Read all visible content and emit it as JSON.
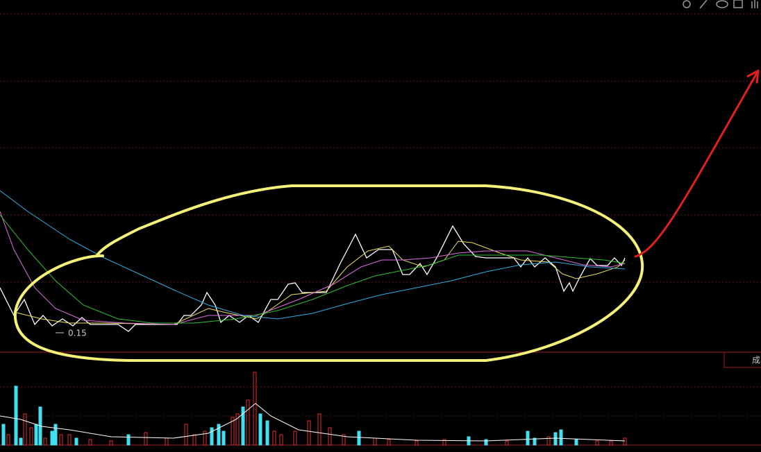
{
  "chart_data": {
    "type": "line",
    "annotation": "0.15",
    "side_label": "成",
    "xlim": [
      0,
      1096
    ],
    "ylim": [
      0.143,
      0.244
    ],
    "series": [
      {
        "color": "#ffffff",
        "x": [
          0,
          20,
          35,
          50,
          62,
          75,
          90,
          105,
          118,
          130,
          170,
          185,
          195,
          255,
          265,
          275,
          290,
          298,
          310,
          318,
          330,
          345,
          358,
          372,
          390,
          400,
          415,
          425,
          435,
          470,
          490,
          512,
          528,
          545,
          565,
          580,
          590,
          605,
          615,
          630,
          652,
          668,
          685,
          700,
          740,
          750,
          760,
          770,
          785,
          800,
          812,
          820,
          825,
          835,
          850,
          860,
          875,
          885,
          895,
          900
        ],
        "values": [
          0.161,
          0.153,
          0.1576,
          0.1504,
          0.153,
          0.15,
          0.152,
          0.15,
          0.1524,
          0.1504,
          0.1504,
          0.1484,
          0.1504,
          0.1504,
          0.153,
          0.153,
          0.156,
          0.1596,
          0.156,
          0.151,
          0.153,
          0.151,
          0.153,
          0.151,
          0.1576,
          0.1576,
          0.162,
          0.1624,
          0.1596,
          0.1596,
          0.168,
          0.1764,
          0.1696,
          0.172,
          0.172,
          0.1648,
          0.1648,
          0.168,
          0.1648,
          0.17,
          0.1788,
          0.1736,
          0.17,
          0.1696,
          0.1696,
          0.167,
          0.1696,
          0.167,
          0.1696,
          0.167,
          0.16,
          0.1624,
          0.16,
          0.164,
          0.1694,
          0.1674,
          0.1674,
          0.1696,
          0.1674,
          0.1696
        ]
      },
      {
        "color": "#f0e060",
        "x": [
          20,
          60,
          100,
          150,
          250,
          300,
          330,
          370,
          420,
          470,
          500,
          530,
          560,
          580,
          610,
          640,
          660,
          680,
          720,
          750,
          790,
          810,
          830,
          860,
          890,
          900
        ],
        "values": [
          0.154,
          0.152,
          0.1508,
          0.1508,
          0.1504,
          0.155,
          0.1536,
          0.152,
          0.159,
          0.16,
          0.167,
          0.1716,
          0.173,
          0.169,
          0.167,
          0.169,
          0.1744,
          0.174,
          0.171,
          0.169,
          0.1684,
          0.165,
          0.1636,
          0.165,
          0.167,
          0.169
        ]
      },
      {
        "color": "#e070e0",
        "x": [
          0,
          20,
          50,
          80,
          120,
          180,
          250,
          300,
          370,
          430,
          480,
          520,
          550,
          580,
          620,
          660,
          700,
          760,
          800,
          840,
          880,
          900
        ],
        "values": [
          0.183,
          0.172,
          0.161,
          0.155,
          0.1516,
          0.1508,
          0.1504,
          0.153,
          0.153,
          0.1576,
          0.162,
          0.167,
          0.169,
          0.169,
          0.1696,
          0.171,
          0.1716,
          0.1716,
          0.1696,
          0.1676,
          0.167,
          0.168
        ]
      },
      {
        "color": "#30c030",
        "x": [
          0,
          40,
          80,
          120,
          170,
          220,
          280,
          340,
          400,
          450,
          500,
          540,
          580,
          620,
          660,
          720,
          780,
          830,
          870,
          900
        ],
        "values": [
          0.182,
          0.172,
          0.163,
          0.156,
          0.152,
          0.1508,
          0.1508,
          0.152,
          0.1544,
          0.1576,
          0.1616,
          0.1644,
          0.166,
          0.1676,
          0.1704,
          0.1704,
          0.1704,
          0.1696,
          0.169,
          0.168
        ]
      },
      {
        "color": "#30b0e0",
        "x": [
          0,
          40,
          100,
          150,
          200,
          250,
          300,
          350,
          400,
          450,
          500,
          550,
          600,
          650,
          700,
          750,
          800,
          850,
          900
        ],
        "values": [
          0.189,
          0.183,
          0.175,
          0.1696,
          0.165,
          0.1604,
          0.156,
          0.153,
          0.152,
          0.1536,
          0.1564,
          0.159,
          0.161,
          0.163,
          0.1656,
          0.1676,
          0.1684,
          0.167,
          0.1664
        ]
      }
    ],
    "volume": {
      "type": "bar",
      "xlim": [
        0,
        1096
      ],
      "ylim": [
        0,
        110
      ],
      "x": [
        5,
        12,
        23,
        30,
        36,
        45,
        52,
        58,
        65,
        75,
        80,
        88,
        100,
        110,
        130,
        160,
        185,
        210,
        240,
        268,
        280,
        295,
        305,
        315,
        322,
        335,
        342,
        350,
        357,
        367,
        375,
        385,
        395,
        405,
        425,
        445,
        460,
        475,
        495,
        517,
        540,
        560,
        600,
        640,
        675,
        700,
        730,
        760,
        770,
        790,
        800,
        808,
        830,
        860,
        880,
        900
      ],
      "values": [
        30,
        15,
        85,
        10,
        45,
        25,
        30,
        55,
        10,
        20,
        30,
        15,
        15,
        10,
        8,
        6,
        15,
        18,
        10,
        30,
        15,
        20,
        25,
        30,
        20,
        40,
        45,
        55,
        65,
        105,
        45,
        35,
        20,
        15,
        20,
        35,
        45,
        25,
        15,
        20,
        10,
        8,
        6,
        8,
        12,
        8,
        6,
        20,
        10,
        12,
        18,
        22,
        8,
        6,
        6,
        10
      ],
      "colors": [
        "#40e0f0",
        "#e03030",
        "#40e0f0",
        "#40e0f0",
        "#e03030",
        "#e03030",
        "#40e0f0",
        "#40e0f0",
        "#e03030",
        "#40e0f0",
        "#40e0f0",
        "#e03030",
        "#e03030",
        "#40e0f0",
        "#e03030",
        "#e03030",
        "#40e0f0",
        "#e03030",
        "#e03030",
        "#e03030",
        "#e03030",
        "#e03030",
        "#40e0f0",
        "#40e0f0",
        "#40e0f0",
        "#e03030",
        "#e03030",
        "#40e0f0",
        "#e03030",
        "#e03030",
        "#40e0f0",
        "#40e0f0",
        "#e03030",
        "#e03030",
        "#e03030",
        "#e03030",
        "#e03030",
        "#e03030",
        "#e03030",
        "#40e0f0",
        "#e03030",
        "#e03030",
        "#e03030",
        "#e03030",
        "#40e0f0",
        "#40e0f0",
        "#e03030",
        "#40e0f0",
        "#40e0f0",
        "#e03030",
        "#40e0f0",
        "#40e0f0",
        "#40e0f0",
        "#e03030",
        "#e03030",
        "#e03030"
      ],
      "ma": {
        "color": "#ffffff",
        "x": [
          0,
          30,
          60,
          100,
          160,
          250,
          300,
          340,
          368,
          390,
          430,
          500,
          600,
          700,
          800,
          900
        ],
        "values": [
          42,
          37,
          27,
          22,
          12,
          10,
          17,
          37,
          60,
          42,
          22,
          12,
          7,
          6,
          10,
          6
        ]
      }
    }
  }
}
